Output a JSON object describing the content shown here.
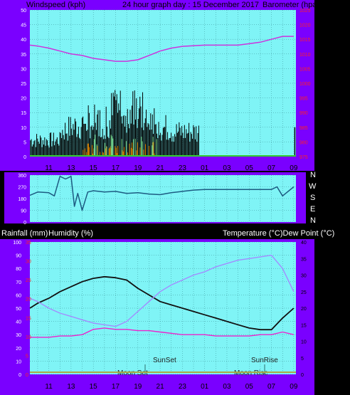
{
  "colors": {
    "frame": "#7a00ff",
    "plot_bg": "#7ff4f6",
    "grid": "#3a8f95",
    "wind": "#000000",
    "gust_green": "#7ce89a",
    "orange": "#ff9900",
    "pressure": "#cc33dd",
    "winddir": "#1d5b82",
    "temp": "#111111",
    "dewpoint": "#a28cff",
    "humidity": "#ee22cc",
    "red_axis": "#ff2222",
    "sun_moon_line": "#aaaa44"
  },
  "top": {
    "left_label": "Windspeed (kph)",
    "title": "24 hour graph day : 15 December 2017",
    "right_label": "Barometer (hpa)"
  },
  "middle": {
    "compass": [
      "N",
      "W",
      "S",
      "E",
      "N"
    ]
  },
  "bottom": {
    "left_label1": "Rainfall (mm)",
    "left_label2": "Humidity (%)",
    "right_label": "Temperature (°C)Dew Point (°C)",
    "sunset": "SunSet",
    "sunrise": "SunRise",
    "moonset": "Moon Set",
    "moonrise": "Moon Rise"
  },
  "chart_data": [
    {
      "type": "line",
      "name": "wind-barometer",
      "x_ticks": [
        "11",
        "13",
        "15",
        "17",
        "19",
        "21",
        "23",
        "01",
        "03",
        "05",
        "07",
        "09"
      ],
      "y_left_ticks": [
        0,
        5,
        10,
        15,
        20,
        25,
        30,
        35,
        40,
        45,
        50
      ],
      "y_right_ticks": [
        975,
        980,
        985,
        990,
        995,
        1000,
        1005,
        1010,
        1015,
        1020,
        1025
      ],
      "ylim_left": [
        0,
        50
      ],
      "ylim_right": [
        975,
        1025
      ],
      "series": [
        {
          "axis": "right",
          "x": [
            9.3,
            10,
            11,
            12,
            13,
            14,
            15,
            16,
            17,
            18,
            19,
            20,
            21,
            22,
            23,
            24,
            25,
            26,
            27,
            28,
            29,
            30,
            31,
            32,
            33
          ],
          "values": [
            1013,
            1012.7,
            1012,
            1011,
            1010,
            1009.5,
            1008.5,
            1008,
            1007.5,
            1007.5,
            1008,
            1009.5,
            1011,
            1012,
            1012.6,
            1012.8,
            1013,
            1013,
            1013,
            1013,
            1013.5,
            1014,
            1015,
            1016,
            1016
          ]
        }
      ]
    },
    {
      "type": "line",
      "name": "wind-direction",
      "x_ticks": [
        "11",
        "13",
        "15",
        "17",
        "19",
        "21",
        "23",
        "01",
        "03",
        "05",
        "07",
        "09"
      ],
      "y_ticks": [
        0,
        90,
        180,
        270,
        360
      ],
      "ylim": [
        0,
        360
      ],
      "series": [
        {
          "x": [
            9.3,
            10,
            11,
            11.5,
            12,
            12.5,
            13,
            13.3,
            13.6,
            14,
            14.5,
            15,
            16,
            17,
            18,
            19,
            20,
            21,
            22,
            23,
            24,
            25,
            26,
            27,
            28,
            29,
            30,
            31,
            31.5,
            32,
            33
          ],
          "values": [
            205,
            230,
            225,
            200,
            350,
            330,
            350,
            120,
            220,
            90,
            230,
            240,
            230,
            235,
            220,
            225,
            215,
            210,
            225,
            235,
            245,
            250,
            250,
            250,
            250,
            250,
            250,
            250,
            270,
            200,
            270
          ]
        }
      ]
    },
    {
      "type": "line",
      "name": "temperature-humidity",
      "x_ticks": [
        "11",
        "13",
        "15",
        "17",
        "19",
        "21",
        "23",
        "01",
        "03",
        "05",
        "07",
        "09"
      ],
      "y_left_ticks": [
        0,
        10,
        20,
        30,
        40,
        50,
        60,
        70,
        80,
        90,
        100
      ],
      "y_red_ticks": [
        0,
        5,
        10,
        15,
        20,
        25,
        30,
        35
      ],
      "y_right_ticks": [
        0,
        5,
        10,
        15,
        20,
        25,
        30,
        35,
        40
      ],
      "ylim_left": [
        0,
        100
      ],
      "ylim_right": [
        0,
        40
      ],
      "series": [
        {
          "axis": "right",
          "x": [
            9.3,
            10,
            11,
            12,
            13,
            14,
            15,
            16,
            17,
            18,
            19,
            20,
            21,
            22,
            23,
            24,
            25,
            26,
            27,
            28,
            29,
            30,
            31,
            32,
            33
          ],
          "values": [
            20,
            21.5,
            23,
            25,
            26.5,
            28,
            29,
            29.5,
            29.2,
            28.5,
            26,
            24,
            22,
            21,
            20,
            19,
            18,
            17,
            16,
            15,
            14,
            13.5,
            13.5,
            17,
            20
          ]
        },
        {
          "axis": "right",
          "x": [
            9.3,
            10,
            11,
            12,
            13,
            14,
            15,
            16,
            17,
            18,
            19,
            20,
            21,
            22,
            23,
            24,
            25,
            26,
            27,
            28,
            29,
            30,
            31,
            32,
            33
          ],
          "values": [
            23,
            22,
            20,
            18.5,
            17.5,
            16.5,
            15.5,
            15,
            14.5,
            16,
            19,
            22,
            25,
            27,
            28.5,
            30,
            31,
            32.5,
            33.5,
            34.5,
            35,
            35.5,
            36,
            32,
            25
          ]
        },
        {
          "axis": "left",
          "x": [
            9.3,
            10,
            11,
            12,
            13,
            14,
            15,
            16,
            17,
            18,
            19,
            20,
            21,
            22,
            23,
            24,
            25,
            26,
            27,
            28,
            29,
            30,
            31,
            32,
            33
          ],
          "values": [
            28,
            28,
            28,
            29,
            29,
            30,
            34,
            35,
            34,
            34,
            33,
            33,
            32,
            31,
            30,
            30,
            30,
            29,
            29,
            29,
            29,
            30,
            30,
            32,
            30
          ]
        }
      ]
    }
  ]
}
